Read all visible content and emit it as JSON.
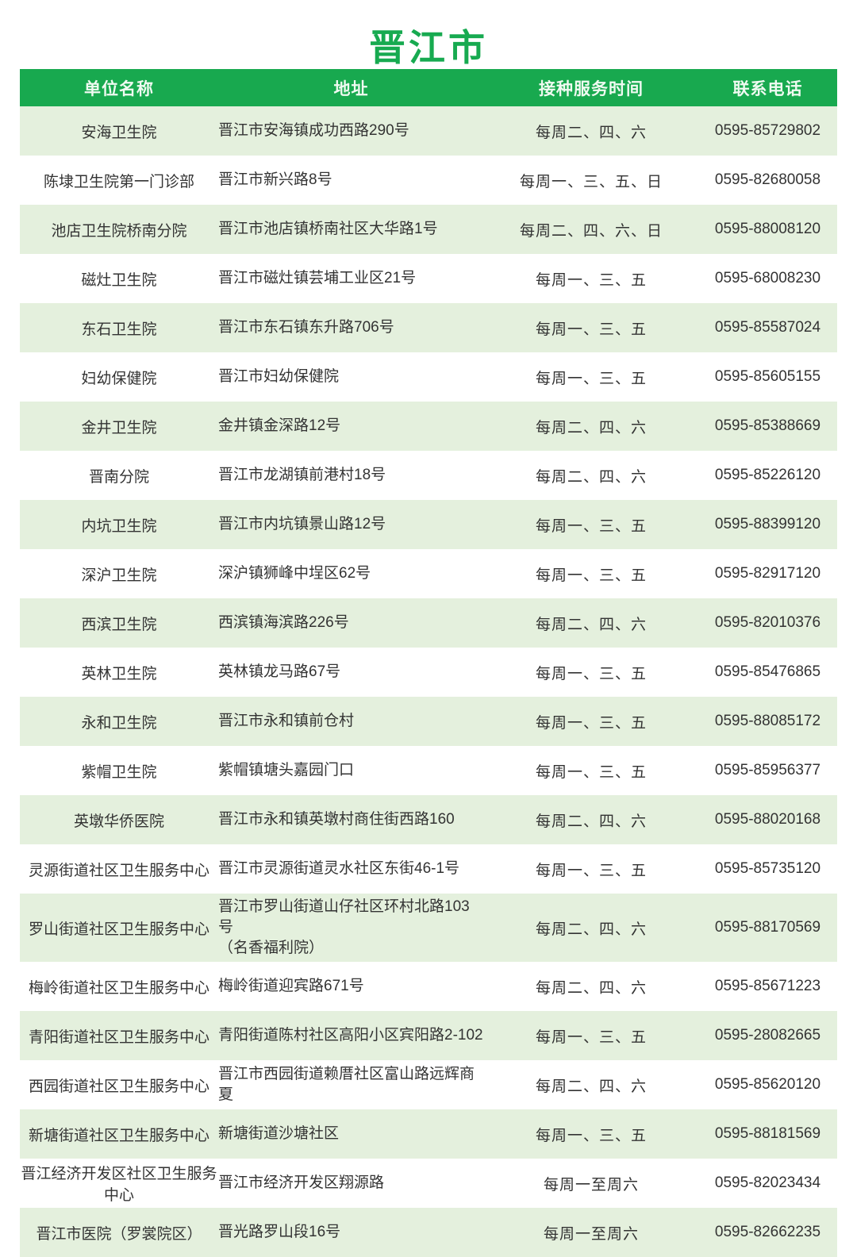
{
  "page": {
    "title": "晋江市"
  },
  "colors": {
    "accent_green": "#18a94f",
    "row_stripe_green": "#e4f0dd",
    "header_text": "#effaf1",
    "body_text": "#333333"
  },
  "table": {
    "headers": [
      "单位名称",
      "地址",
      "接种服务时间",
      "联系电话"
    ],
    "rows": [
      {
        "name": "安海卫生院",
        "address": "晋江市安海镇成功西路290号",
        "address2": "",
        "time": "每周二、四、六",
        "phone": "0595-85729802"
      },
      {
        "name": "陈埭卫生院第一门诊部",
        "address": "晋江市新兴路8号",
        "address2": "",
        "time": "每周一、三、五、日",
        "phone": "0595-82680058"
      },
      {
        "name": "池店卫生院桥南分院",
        "address": "晋江市池店镇桥南社区大华路1号",
        "address2": "",
        "time": "每周二、四、六、日",
        "phone": "0595-88008120"
      },
      {
        "name": "磁灶卫生院",
        "address": "晋江市磁灶镇芸埔工业区21号",
        "address2": "",
        "time": "每周一、三、五",
        "phone": "0595-68008230"
      },
      {
        "name": "东石卫生院",
        "address": "晋江市东石镇东升路706号",
        "address2": "",
        "time": "每周一、三、五",
        "phone": "0595-85587024"
      },
      {
        "name": "妇幼保健院",
        "address": "晋江市妇幼保健院",
        "address2": "",
        "time": "每周一、三、五",
        "phone": "0595-85605155"
      },
      {
        "name": "金井卫生院",
        "address": "金井镇金深路12号",
        "address2": "",
        "time": "每周二、四、六",
        "phone": "0595-85388669"
      },
      {
        "name": "晋南分院",
        "address": "晋江市龙湖镇前港村18号",
        "address2": "",
        "time": "每周二、四、六",
        "phone": "0595-85226120"
      },
      {
        "name": "内坑卫生院",
        "address": "晋江市内坑镇景山路12号",
        "address2": "",
        "time": "每周一、三、五",
        "phone": "0595-88399120"
      },
      {
        "name": "深沪卫生院",
        "address": "深沪镇狮峰中埕区62号",
        "address2": "",
        "time": "每周一、三、五",
        "phone": "0595-82917120"
      },
      {
        "name": "西滨卫生院",
        "address": "西滨镇海滨路226号",
        "address2": "",
        "time": "每周二、四、六",
        "phone": "0595-82010376"
      },
      {
        "name": "英林卫生院",
        "address": "英林镇龙马路67号",
        "address2": "",
        "time": "每周一、三、五",
        "phone": "0595-85476865"
      },
      {
        "name": "永和卫生院",
        "address": "晋江市永和镇前仓村",
        "address2": "",
        "time": "每周一、三、五",
        "phone": "0595-88085172"
      },
      {
        "name": "紫帽卫生院",
        "address": "紫帽镇塘头嘉园门口",
        "address2": "",
        "time": "每周一、三、五",
        "phone": "0595-85956377"
      },
      {
        "name": "英墩华侨医院",
        "address": "晋江市永和镇英墩村商住街西路160",
        "address2": "",
        "time": "每周二、四、六",
        "phone": "0595-88020168"
      },
      {
        "name": "灵源街道社区卫生服务中心",
        "address": "晋江市灵源街道灵水社区东街46-1号",
        "address2": "",
        "time": "每周一、三、五",
        "phone": "0595-85735120"
      },
      {
        "name": "罗山街道社区卫生服务中心",
        "address": "晋江市罗山街道山仔社区环村北路103号",
        "address2": "（名香福利院）",
        "time": "每周二、四、六",
        "phone": "0595-88170569"
      },
      {
        "name": "梅岭街道社区卫生服务中心",
        "address": "梅岭街道迎宾路671号",
        "address2": "",
        "time": "每周二、四、六",
        "phone": "0595-85671223"
      },
      {
        "name": "青阳街道社区卫生服务中心",
        "address": "青阳街道陈村社区高阳小区宾阳路2-102",
        "address2": "",
        "time": "每周一、三、五",
        "phone": "0595-28082665"
      },
      {
        "name": "西园街道社区卫生服务中心",
        "address": "晋江市西园街道赖厝社区富山路远辉商夏",
        "address2": "",
        "time": "每周二、四、六",
        "phone": "0595-85620120"
      },
      {
        "name": "新塘街道社区卫生服务中心",
        "address": "新塘街道沙塘社区",
        "address2": "",
        "time": "每周一、三、五",
        "phone": "0595-88181569"
      },
      {
        "name": "晋江经济开发区社区卫生服务中心",
        "address": "晋江市经济开发区翔源路",
        "address2": "",
        "time": "每周一至周六",
        "phone": "0595-82023434"
      },
      {
        "name": "晋江市医院（罗裳院区）",
        "address": "晋光路罗山段16号",
        "address2": "",
        "time": "每周一至周六",
        "phone": "0595-82662235"
      }
    ]
  }
}
